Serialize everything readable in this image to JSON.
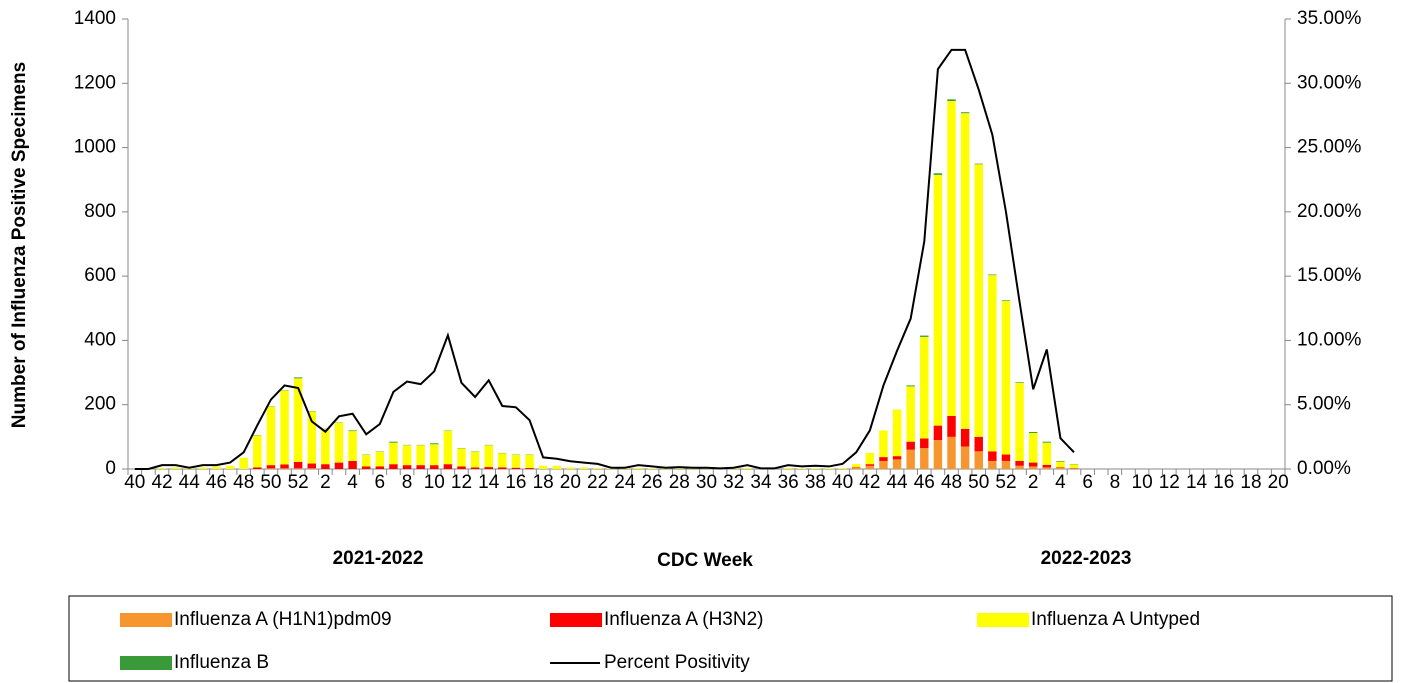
{
  "chart_data": {
    "type": "bar",
    "stacked": true,
    "y_axis_label": "Number of Influenza Positive Specimens",
    "x_axis_label": "CDC Week",
    "annotations": [
      "2021-2022",
      "2022-2023"
    ],
    "categories": [
      "40",
      null,
      "42",
      null,
      "44",
      null,
      "46",
      null,
      "48",
      null,
      "50",
      null,
      "52",
      null,
      "2",
      null,
      "4",
      null,
      "6",
      null,
      "8",
      null,
      "10",
      null,
      "12",
      null,
      "14",
      null,
      "16",
      null,
      "18",
      null,
      "20",
      null,
      "22",
      null,
      "24",
      null,
      "26",
      null,
      "28",
      null,
      "30",
      null,
      "32",
      null,
      "34",
      null,
      "36",
      null,
      "38",
      null,
      "40",
      null,
      "42",
      null,
      "44",
      null,
      "46",
      null,
      "48",
      null,
      "50",
      null,
      "52",
      null,
      "2",
      null,
      "4",
      null,
      "6",
      null,
      "8",
      null,
      "10",
      null,
      "12",
      null,
      "14",
      null,
      "16",
      null,
      "18",
      null,
      "20"
    ],
    "ylim": [
      0,
      1400
    ],
    "yticks": [
      0,
      200,
      400,
      600,
      800,
      1000,
      1200,
      1400
    ],
    "y2lim": [
      0,
      35
    ],
    "y2ticks": [
      {
        "value": 0,
        "label": "0.00%"
      },
      {
        "value": 5,
        "label": "5.00%"
      },
      {
        "value": 10,
        "label": "10.00%"
      },
      {
        "value": 15,
        "label": "15.00%"
      },
      {
        "value": 20,
        "label": "20.00%"
      },
      {
        "value": 25,
        "label": "25.00%"
      },
      {
        "value": 30,
        "label": "30.00%"
      },
      {
        "value": 35,
        "label": "35.00%"
      }
    ],
    "legend": "bottom",
    "series": [
      {
        "name": "Influenza A (H1N1)pdm09",
        "color": "#f7962f",
        "values": [
          0,
          0,
          0,
          0,
          0,
          0,
          0,
          0,
          0,
          0,
          2,
          2,
          2,
          2,
          0,
          0,
          0,
          0,
          0,
          0,
          0,
          0,
          0,
          0,
          0,
          0,
          0,
          0,
          0,
          0,
          0,
          0,
          0,
          0,
          0,
          0,
          0,
          0,
          0,
          0,
          0,
          0,
          0,
          0,
          0,
          0,
          0,
          0,
          0,
          0,
          0,
          0,
          0,
          3,
          10,
          25,
          30,
          60,
          65,
          90,
          100,
          70,
          55,
          25,
          25,
          10,
          8,
          5,
          3,
          2,
          0,
          0,
          0,
          0,
          0,
          0,
          0,
          0,
          0,
          0,
          0,
          0,
          0,
          0,
          0
        ]
      },
      {
        "name": "Influenza A (H3N2)",
        "color": "#ff0000",
        "values": [
          0,
          0,
          0,
          0,
          0,
          0,
          0,
          0,
          0,
          5,
          10,
          12,
          20,
          15,
          15,
          20,
          25,
          8,
          8,
          15,
          12,
          12,
          12,
          15,
          8,
          5,
          6,
          5,
          4,
          3,
          0,
          0,
          0,
          0,
          0,
          0,
          0,
          0,
          0,
          0,
          0,
          0,
          0,
          0,
          0,
          0,
          0,
          0,
          0,
          0,
          0,
          0,
          0,
          2,
          5,
          12,
          10,
          25,
          30,
          45,
          65,
          55,
          45,
          30,
          20,
          15,
          12,
          8,
          2,
          1,
          0,
          0,
          0,
          0,
          0,
          0,
          0,
          0,
          0,
          0,
          0,
          0,
          0,
          0,
          0
        ]
      },
      {
        "name": "Influenza A Untyped",
        "color": "#ffff00",
        "values": [
          0,
          0,
          3,
          5,
          3,
          5,
          8,
          10,
          35,
          99,
          182,
          230,
          260,
          162,
          109,
          124,
          93,
          36,
          46,
          67,
          62,
          62,
          65,
          104,
          56,
          49,
          68,
          44,
          40,
          41,
          10,
          10,
          5,
          5,
          3,
          2,
          2,
          3,
          2,
          2,
          2,
          2,
          2,
          1,
          2,
          3,
          1,
          1,
          3,
          2,
          2,
          2,
          3,
          10,
          35,
          83,
          145,
          172,
          316,
          780,
          980,
          982,
          848,
          548,
          478,
          243,
          92,
          69,
          18,
          11,
          0,
          0,
          0,
          0,
          0,
          0,
          0,
          0,
          0,
          0,
          0,
          0,
          0,
          0,
          0
        ]
      },
      {
        "name": "Influenza B",
        "color": "#3a9a3a",
        "values": [
          0,
          0,
          0,
          0,
          0,
          0,
          0,
          0,
          0,
          1,
          1,
          1,
          3,
          1,
          1,
          1,
          2,
          1,
          1,
          3,
          1,
          1,
          3,
          1,
          1,
          1,
          1,
          1,
          1,
          1,
          0,
          0,
          0,
          0,
          0,
          0,
          0,
          0,
          0,
          0,
          0,
          0,
          0,
          0,
          0,
          0,
          0,
          0,
          0,
          0,
          0,
          0,
          0,
          0,
          0,
          0,
          0,
          3,
          4,
          5,
          5,
          3,
          2,
          2,
          2,
          2,
          3,
          3,
          2,
          1,
          0,
          0,
          0,
          0,
          0,
          0,
          0,
          0,
          0,
          0,
          0,
          0,
          0,
          0,
          0
        ]
      },
      {
        "name": "Percent Positivity",
        "color": "#000000",
        "type": "line",
        "axis": "y2",
        "values": [
          0,
          0,
          0.3,
          0.3,
          0.1,
          0.3,
          0.3,
          0.5,
          1.3,
          3.4,
          5.4,
          6.5,
          6.3,
          3.7,
          2.9,
          4.1,
          4.3,
          2.7,
          3.5,
          6.0,
          6.8,
          6.6,
          7.6,
          10.4,
          6.7,
          5.6,
          6.9,
          4.9,
          4.8,
          3.8,
          0.9,
          0.8,
          0.6,
          0.5,
          0.4,
          0.1,
          0.1,
          0.3,
          0.2,
          0.1,
          0.15,
          0.1,
          0.1,
          0.05,
          0.1,
          0.3,
          0.05,
          0.05,
          0.3,
          0.2,
          0.25,
          0.2,
          0.4,
          1.3,
          3.0,
          6.5,
          9.2,
          11.7,
          17.7,
          31.1,
          32.6,
          32.6,
          29.5,
          26.0,
          20.0,
          13.0,
          6.2,
          9.3,
          2.4,
          1.3,
          null,
          null,
          null,
          null,
          null,
          null,
          null,
          null,
          null,
          null,
          null,
          null,
          null,
          null,
          null
        ]
      }
    ]
  }
}
